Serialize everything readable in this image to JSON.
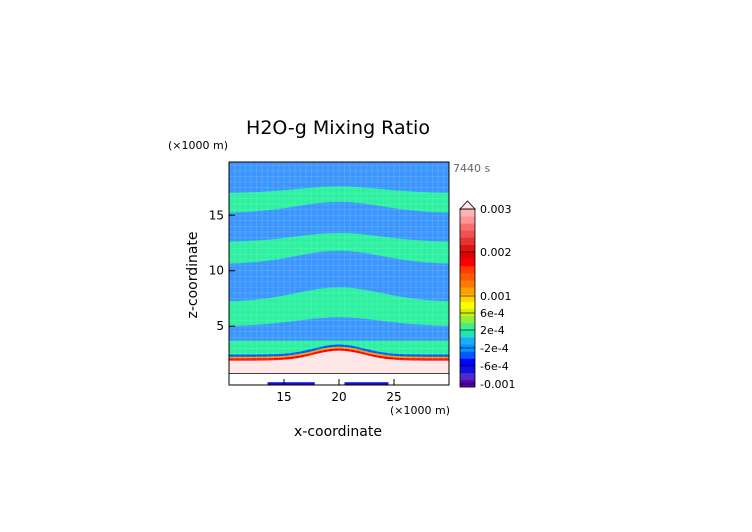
{
  "chart_data": {
    "type": "heatmap",
    "title": "H2O-g Mixing Ratio",
    "time_label": "7440 s",
    "xlabel": "x-coordinate",
    "ylabel": "z-coordinate",
    "x_unit": "(×1000 m)",
    "y_unit": "(×1000 m)",
    "xlim": [
      10,
      30
    ],
    "ylim": [
      -0.3,
      19.8
    ],
    "x_ticks": [
      15,
      20,
      25
    ],
    "y_ticks": [
      5,
      10,
      15
    ],
    "bands": [
      {
        "z": [
          0.7,
          2.5
        ],
        "top_profile": "peak at x=20"
      },
      {
        "z": [
          2.5,
          3.7
        ],
        "value": "2e-4"
      },
      {
        "z": [
          3.7,
          5.8
        ],
        "value": "-2e-4"
      },
      {
        "z": [
          5.8,
          8.6
        ],
        "value": "2e-4"
      },
      {
        "z": [
          8.6,
          11.7
        ],
        "value": "-2e-4"
      },
      {
        "z": [
          11.7,
          15.0
        ],
        "value": "2e-4"
      },
      {
        "z": [
          15.0,
          17.5
        ],
        "value": "-2e-4"
      },
      {
        "z": [
          17.5,
          19.8
        ],
        "value": "2e-4"
      }
    ],
    "colorbar": {
      "labels": [
        "0.003",
        "0.002",
        "0.001",
        "6e-4",
        "2e-4",
        "-2e-4",
        "-6e-4",
        "-0.001"
      ],
      "colors": [
        "#5a00b4",
        "#4b2cc8",
        "#1010e0",
        "#0000ff",
        "#005aff",
        "#0096ff",
        "#1eaaff",
        "#1ee6b4",
        "#3cf08c",
        "#8cf03c",
        "#d2f000",
        "#ffff00",
        "#ffd200",
        "#ffa000",
        "#ff7800",
        "#ff5a00",
        "#ff3c00",
        "#ff0000",
        "#e60000",
        "#dc1414",
        "#e63232",
        "#f05050",
        "#fa6e6e",
        "#ff9696",
        "#ffb4b4"
      ],
      "extend_top_arrow": true
    },
    "colors": {
      "positive_band": "#2df0a0",
      "negative_band": "#3c96ff",
      "high_core": "#ffe6e6"
    }
  }
}
